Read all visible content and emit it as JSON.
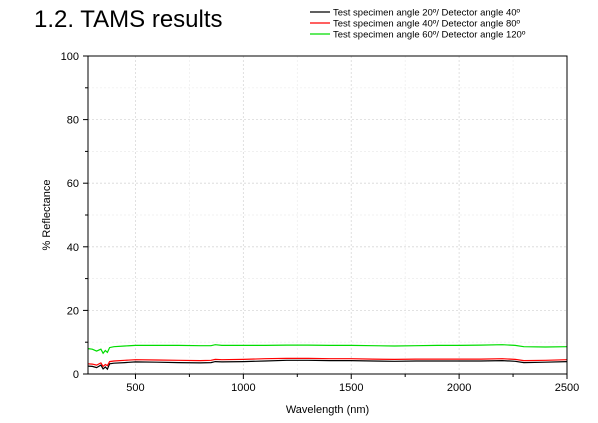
{
  "page_title": "1.2. TAMS results",
  "chart_data": {
    "type": "line",
    "xlabel": "Wavelength (nm)",
    "ylabel": "% Reflectance",
    "xlim": [
      280,
      2500
    ],
    "ylim": [
      0,
      100
    ],
    "xticks": [
      500,
      1000,
      1500,
      2000,
      2500
    ],
    "yticks": [
      0,
      20,
      40,
      60,
      80,
      100
    ],
    "grid": true,
    "legend_position": "top-right",
    "series": [
      {
        "name": "Test specimen angle 20º/ Detector angle 40º",
        "color": "#000000",
        "points": [
          [
            280,
            2.5
          ],
          [
            300,
            2.4
          ],
          [
            320,
            2.0
          ],
          [
            340,
            2.8
          ],
          [
            350,
            1.6
          ],
          [
            360,
            2.2
          ],
          [
            370,
            1.5
          ],
          [
            380,
            3.2
          ],
          [
            400,
            3.4
          ],
          [
            450,
            3.6
          ],
          [
            500,
            3.8
          ],
          [
            600,
            3.7
          ],
          [
            700,
            3.6
          ],
          [
            800,
            3.5
          ],
          [
            850,
            3.6
          ],
          [
            870,
            3.9
          ],
          [
            900,
            3.8
          ],
          [
            1000,
            3.9
          ],
          [
            1100,
            4.1
          ],
          [
            1200,
            4.3
          ],
          [
            1300,
            4.3
          ],
          [
            1400,
            4.2
          ],
          [
            1500,
            4.2
          ],
          [
            1600,
            4.1
          ],
          [
            1700,
            4.0
          ],
          [
            1800,
            4.1
          ],
          [
            1900,
            4.1
          ],
          [
            2000,
            4.1
          ],
          [
            2100,
            4.1
          ],
          [
            2200,
            4.2
          ],
          [
            2260,
            4.0
          ],
          [
            2300,
            3.6
          ],
          [
            2400,
            3.7
          ],
          [
            2500,
            3.9
          ]
        ]
      },
      {
        "name": "Test specimen angle 40º/ Detector angle 80º",
        "color": "#ff0000",
        "points": [
          [
            280,
            3.2
          ],
          [
            300,
            3.1
          ],
          [
            320,
            2.8
          ],
          [
            340,
            3.5
          ],
          [
            350,
            2.4
          ],
          [
            360,
            3.0
          ],
          [
            370,
            2.6
          ],
          [
            380,
            3.9
          ],
          [
            400,
            4.1
          ],
          [
            450,
            4.3
          ],
          [
            500,
            4.5
          ],
          [
            600,
            4.4
          ],
          [
            700,
            4.3
          ],
          [
            800,
            4.2
          ],
          [
            850,
            4.3
          ],
          [
            870,
            4.6
          ],
          [
            900,
            4.5
          ],
          [
            1000,
            4.6
          ],
          [
            1100,
            4.8
          ],
          [
            1200,
            4.9
          ],
          [
            1300,
            4.9
          ],
          [
            1400,
            4.8
          ],
          [
            1500,
            4.8
          ],
          [
            1600,
            4.7
          ],
          [
            1700,
            4.6
          ],
          [
            1800,
            4.7
          ],
          [
            1900,
            4.7
          ],
          [
            2000,
            4.7
          ],
          [
            2100,
            4.7
          ],
          [
            2200,
            4.8
          ],
          [
            2260,
            4.6
          ],
          [
            2300,
            4.2
          ],
          [
            2400,
            4.3
          ],
          [
            2500,
            4.5
          ]
        ]
      },
      {
        "name": "Test specimen angle 60º/ Detector angle 120º",
        "color": "#00dd00",
        "points": [
          [
            280,
            8.0
          ],
          [
            300,
            7.8
          ],
          [
            320,
            7.2
          ],
          [
            340,
            7.8
          ],
          [
            350,
            6.5
          ],
          [
            360,
            7.4
          ],
          [
            370,
            6.8
          ],
          [
            380,
            8.3
          ],
          [
            400,
            8.6
          ],
          [
            450,
            8.8
          ],
          [
            500,
            9.0
          ],
          [
            600,
            9.0
          ],
          [
            700,
            9.0
          ],
          [
            800,
            8.9
          ],
          [
            850,
            8.9
          ],
          [
            870,
            9.2
          ],
          [
            900,
            9.0
          ],
          [
            1000,
            9.0
          ],
          [
            1100,
            9.0
          ],
          [
            1200,
            9.1
          ],
          [
            1300,
            9.1
          ],
          [
            1400,
            9.0
          ],
          [
            1500,
            9.0
          ],
          [
            1600,
            8.9
          ],
          [
            1700,
            8.8
          ],
          [
            1800,
            8.9
          ],
          [
            1900,
            9.0
          ],
          [
            2000,
            9.0
          ],
          [
            2100,
            9.1
          ],
          [
            2200,
            9.2
          ],
          [
            2260,
            9.0
          ],
          [
            2300,
            8.6
          ],
          [
            2400,
            8.5
          ],
          [
            2500,
            8.6
          ]
        ]
      }
    ]
  }
}
